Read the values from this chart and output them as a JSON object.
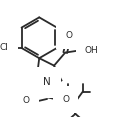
{
  "bg_color": "#ffffff",
  "line_color": "#2a2a2a",
  "line_width": 1.3,
  "font_size": 6.5,
  "figsize": [
    1.19,
    1.21
  ],
  "dpi": 100,
  "xlim": [
    0,
    119
  ],
  "ylim": [
    0,
    121
  ]
}
